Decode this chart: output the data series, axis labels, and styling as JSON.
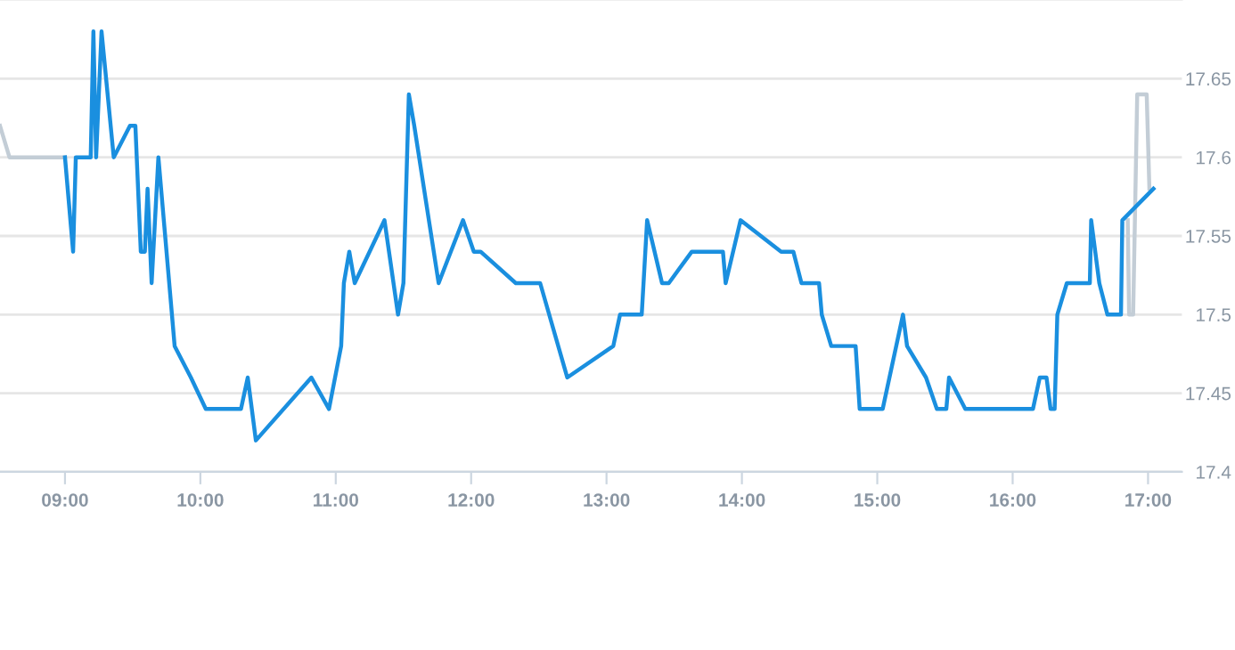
{
  "chart_data": {
    "type": "line",
    "xlim": [
      8.52,
      17.25
    ],
    "xticks": [
      {
        "value": 9,
        "label": "09:00"
      },
      {
        "value": 10,
        "label": "10:00"
      },
      {
        "value": 11,
        "label": "11:00"
      },
      {
        "value": 12,
        "label": "12:00"
      },
      {
        "value": 13,
        "label": "13:00"
      },
      {
        "value": 14,
        "label": "14:00"
      },
      {
        "value": 15,
        "label": "15:00"
      },
      {
        "value": 16,
        "label": "16:00"
      },
      {
        "value": 17,
        "label": "17:00"
      }
    ],
    "ylim": [
      17.4,
      17.7
    ],
    "yticks": [
      17.4,
      17.45,
      17.5,
      17.55,
      17.6,
      17.65
    ],
    "grid": "y",
    "marker": "none",
    "line_style": "solid",
    "series": [
      {
        "color": "#c3cdd6",
        "x": [
          8.52,
          8.59,
          9.0,
          null,
          16.85,
          16.86,
          16.89,
          16.92,
          16.99,
          17.01
        ],
        "values": [
          17.62,
          17.6,
          17.6,
          null,
          17.56,
          17.5,
          17.5,
          17.64,
          17.64,
          17.58
        ]
      },
      {
        "color": "#1a8fdf",
        "x": [
          9.0,
          9.06,
          9.08,
          9.19,
          9.21,
          9.23,
          9.27,
          9.36,
          9.48,
          9.52,
          9.56,
          9.59,
          9.61,
          9.64,
          9.69,
          9.81,
          9.93,
          10.04,
          10.3,
          10.35,
          10.41,
          10.82,
          10.95,
          11.04,
          11.06,
          11.1,
          11.14,
          11.36,
          11.46,
          11.5,
          11.54,
          11.58,
          11.76,
          11.94,
          12.02,
          12.07,
          12.33,
          12.51,
          12.71,
          13.05,
          13.1,
          13.26,
          13.3,
          13.41,
          13.46,
          13.63,
          13.86,
          13.88,
          13.99,
          14.29,
          14.38,
          14.44,
          14.57,
          14.59,
          14.66,
          14.84,
          14.87,
          15.04,
          15.19,
          15.22,
          15.36,
          15.44,
          15.51,
          15.53,
          15.65,
          16.15,
          16.2,
          16.25,
          16.28,
          16.31,
          16.33,
          16.4,
          16.57,
          16.58,
          16.64,
          16.7,
          16.8,
          16.81,
          17.04
        ],
        "values": [
          17.6,
          17.54,
          17.6,
          17.6,
          17.68,
          17.6,
          17.68,
          17.6,
          17.62,
          17.62,
          17.54,
          17.54,
          17.58,
          17.52,
          17.6,
          17.48,
          17.46,
          17.44,
          17.44,
          17.46,
          17.42,
          17.46,
          17.44,
          17.48,
          17.52,
          17.54,
          17.52,
          17.56,
          17.5,
          17.52,
          17.64,
          17.62,
          17.52,
          17.56,
          17.54,
          17.54,
          17.52,
          17.52,
          17.46,
          17.48,
          17.5,
          17.5,
          17.56,
          17.52,
          17.52,
          17.54,
          17.54,
          17.52,
          17.56,
          17.54,
          17.54,
          17.52,
          17.52,
          17.5,
          17.48,
          17.48,
          17.44,
          17.44,
          17.5,
          17.48,
          17.46,
          17.44,
          17.44,
          17.46,
          17.44,
          17.44,
          17.46,
          17.46,
          17.44,
          17.44,
          17.5,
          17.52,
          17.52,
          17.56,
          17.52,
          17.5,
          17.5,
          17.56,
          17.58
        ]
      }
    ]
  }
}
